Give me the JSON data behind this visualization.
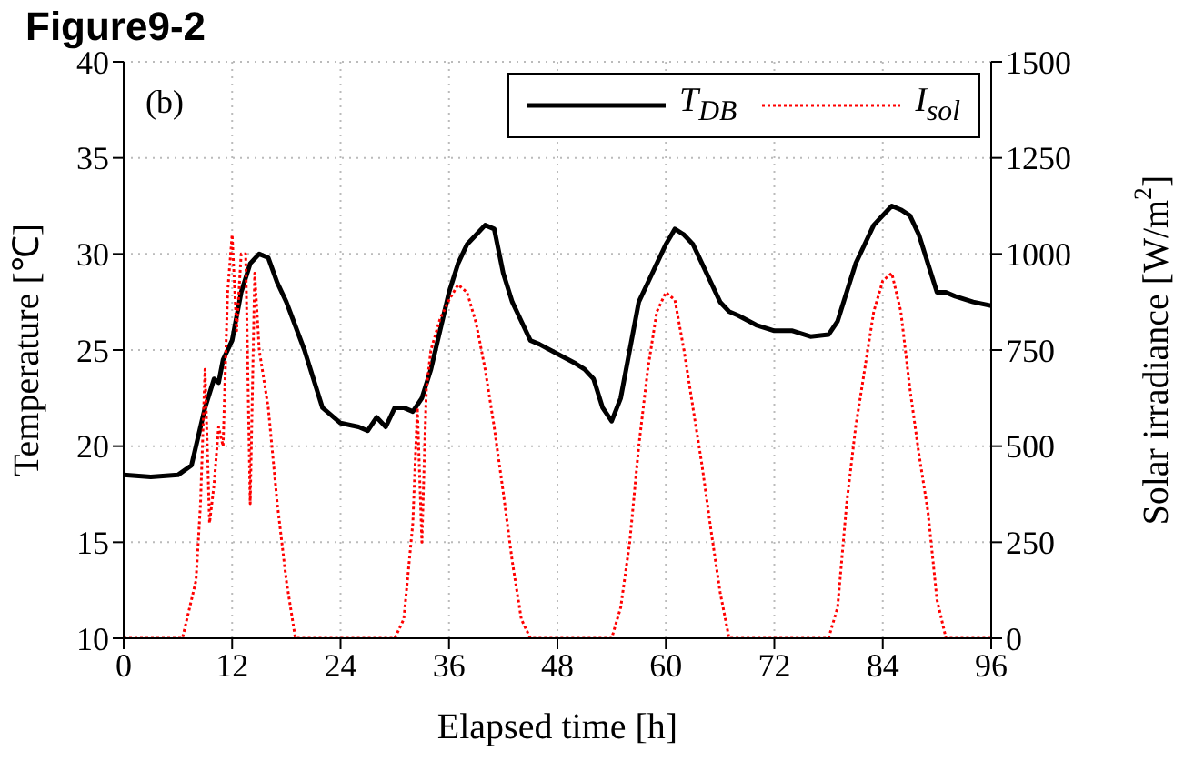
{
  "chart_data": {
    "type": "line",
    "title": "Figure9-2",
    "annotations": [
      "(b)"
    ],
    "xlabel": "Elapsed time [h]",
    "ylabel": "Temperature [℃]",
    "y2label": "Solar irradiance [W/m$^{2}$]",
    "xlim": [
      0,
      96
    ],
    "xticks": [
      0,
      12,
      24,
      36,
      48,
      60,
      72,
      84,
      96
    ],
    "ylim": [
      10,
      40
    ],
    "yticks": [
      10,
      15,
      20,
      25,
      30,
      35,
      40
    ],
    "y2lim": [
      0,
      1500
    ],
    "y2ticks": [
      0,
      250,
      500,
      750,
      1000,
      1250,
      1500
    ],
    "grid": true,
    "legend": "top right",
    "marker": "none",
    "series": [
      {
        "name": "T$_{DB}$",
        "color": "#000000",
        "line_style": "solid",
        "x": [
          0,
          3,
          6,
          7.5,
          8,
          9,
          10,
          10.5,
          11,
          12,
          13,
          14,
          15,
          16,
          17,
          18,
          20,
          22,
          24,
          26,
          27,
          28,
          29,
          30,
          31,
          32,
          33,
          34,
          35,
          36,
          37,
          38,
          39,
          40,
          41,
          42,
          43,
          44,
          45,
          46,
          48,
          50,
          51,
          52,
          53,
          54,
          55,
          56,
          57,
          58,
          59,
          60,
          61,
          62,
          63,
          64,
          65,
          66,
          67,
          68,
          70,
          72,
          74,
          76,
          78,
          79,
          80,
          81,
          82,
          83,
          84,
          85,
          86,
          87,
          88,
          89,
          90,
          91,
          92,
          94,
          96
        ],
        "values": [
          18.5,
          18.4,
          18.5,
          19,
          20,
          22,
          23.5,
          23.3,
          24.5,
          25.5,
          28,
          29.5,
          30,
          29.8,
          28.5,
          27.5,
          25,
          22,
          21.2,
          21,
          20.8,
          21.5,
          21,
          22,
          22,
          21.8,
          22.5,
          24,
          26,
          28,
          29.5,
          30.5,
          31,
          31.5,
          31.3,
          29,
          27.5,
          26.5,
          25.5,
          25.3,
          24.8,
          24.3,
          24,
          23.5,
          22,
          21.3,
          22.5,
          25,
          27.5,
          28.5,
          29.5,
          30.5,
          31.3,
          31,
          30.5,
          29.5,
          28.5,
          27.5,
          27,
          26.8,
          26.3,
          26,
          26,
          25.7,
          25.8,
          26.5,
          28,
          29.5,
          30.5,
          31.5,
          32,
          32.5,
          32.3,
          32,
          31,
          29.5,
          28,
          28,
          27.8,
          27.5,
          27.3
        ]
      },
      {
        "name": "I$_{sol}$",
        "color": "#ff0000",
        "line_style": "dotted",
        "axis": "y2",
        "x": [
          0,
          6.5,
          7,
          8,
          8.5,
          9,
          9.5,
          10,
          10.5,
          11,
          11.5,
          12,
          12.5,
          13,
          13.5,
          14,
          14.5,
          15,
          16,
          17,
          18,
          19,
          30,
          31,
          32,
          32.5,
          33,
          33.5,
          34,
          35,
          36,
          37,
          38,
          39,
          40,
          41,
          42,
          43,
          44,
          45,
          54,
          55,
          56,
          57,
          58,
          59,
          60,
          61,
          62,
          63,
          64,
          65,
          66,
          67,
          78,
          79,
          80,
          81,
          82,
          83,
          84,
          85,
          86,
          87,
          88,
          89,
          90,
          91,
          96
        ],
        "values": [
          0,
          0,
          50,
          150,
          350,
          700,
          300,
          400,
          550,
          500,
          900,
          1050,
          800,
          1000,
          1000,
          350,
          950,
          750,
          600,
          350,
          150,
          0,
          0,
          50,
          300,
          600,
          250,
          650,
          750,
          830,
          880,
          920,
          900,
          820,
          700,
          550,
          380,
          200,
          50,
          0,
          0,
          80,
          250,
          500,
          700,
          850,
          900,
          880,
          750,
          600,
          450,
          280,
          120,
          0,
          0,
          80,
          350,
          550,
          700,
          850,
          930,
          950,
          850,
          650,
          480,
          330,
          100,
          0,
          0
        ]
      }
    ]
  }
}
